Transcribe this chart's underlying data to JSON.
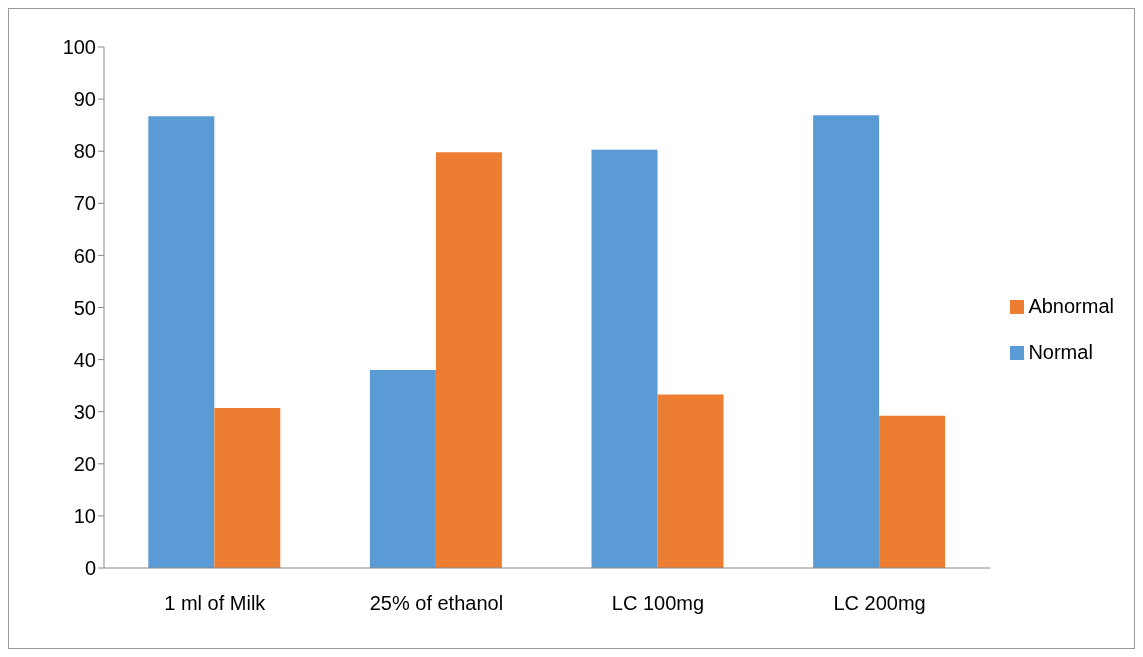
{
  "chart_data": {
    "type": "bar",
    "categories": [
      "1 ml of Milk",
      "25% of ethanol",
      "LC 100mg",
      "LC 200mg"
    ],
    "series": [
      {
        "name": "Normal",
        "color": "#5b9bd5",
        "values": [
          86.7,
          38.0,
          80.3,
          86.9
        ]
      },
      {
        "name": "Abnormal",
        "color": "#ed7d31",
        "values": [
          30.7,
          79.8,
          33.3,
          29.2
        ]
      }
    ],
    "ylim": [
      0,
      100
    ],
    "yticks": [
      0,
      10,
      20,
      30,
      40,
      50,
      60,
      70,
      80,
      90,
      100
    ],
    "grid": false,
    "legend": "right"
  }
}
